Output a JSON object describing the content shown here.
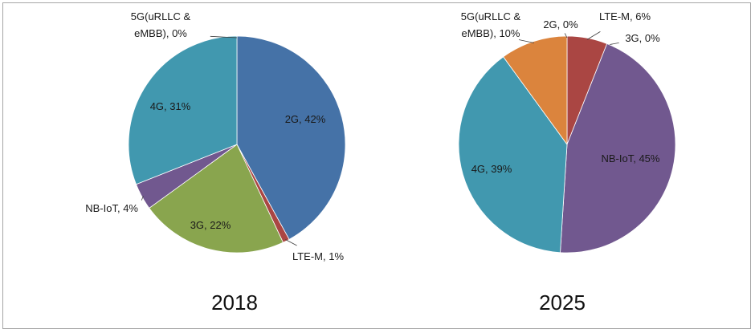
{
  "chart_data": [
    {
      "type": "pie",
      "title": "2018",
      "slices": [
        {
          "label": "2G",
          "value": 42,
          "label_text": "2G, 42%",
          "color": "#4572A7"
        },
        {
          "label": "LTE-M",
          "value": 1,
          "label_text": "LTE-M, 1%",
          "color": "#AA4643"
        },
        {
          "label": "3G",
          "value": 22,
          "label_text": "3G, 22%",
          "color": "#89A54E"
        },
        {
          "label": "NB-IoT",
          "value": 4,
          "label_text": "NB-IoT, 4%",
          "color": "#71588F"
        },
        {
          "label": "4G",
          "value": 31,
          "label_text": "4G, 31%",
          "color": "#4198AF"
        },
        {
          "label": "5G(uRLLC & eMBB)",
          "value": 0,
          "label_text": "5G(uRLLC & eMBB), 0%",
          "color": "#DB843D"
        }
      ]
    },
    {
      "type": "pie",
      "title": "2025",
      "slices": [
        {
          "label": "LTE-M",
          "value": 6,
          "label_text": "LTE-M, 6%",
          "color": "#AA4643"
        },
        {
          "label": "3G",
          "value": 0,
          "label_text": "3G, 0%",
          "color": "#89A54E"
        },
        {
          "label": "NB-IoT",
          "value": 45,
          "label_text": "NB-IoT, 45%",
          "color": "#71588F"
        },
        {
          "label": "4G",
          "value": 39,
          "label_text": "4G, 39%",
          "color": "#4198AF"
        },
        {
          "label": "5G(uRLLC & eMBB)",
          "value": 10,
          "label_text": "5G(uRLLC & eMBB), 10%",
          "color": "#DB843D"
        },
        {
          "label": "2G",
          "value": 0,
          "label_text": "2G, 0%",
          "color": "#4572A7"
        }
      ]
    }
  ]
}
